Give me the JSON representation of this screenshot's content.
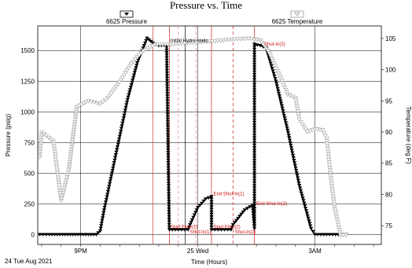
{
  "chart_data": {
    "type": "line",
    "title": "Pressure vs. Time",
    "xlabel": "Time (Hours)",
    "ylabel_left": "Pressure (psig)",
    "ylabel_right": "Temperature (deg F)",
    "date_label": "24 Tue Aug 2021",
    "x_tick_labels": [
      "9PM",
      "25 Wed",
      "3AM"
    ],
    "x_range_hours": [
      19.9,
      4.7
    ],
    "y_left_range": [
      -80,
      1700
    ],
    "y_right_range": [
      72,
      107
    ],
    "y_left_ticks": [
      0,
      250,
      500,
      750,
      1000,
      1250,
      1500
    ],
    "y_right_ticks": [
      75,
      80,
      85,
      90,
      95,
      100,
      105
    ],
    "grid": true,
    "legend_position": "top",
    "series": [
      {
        "name": "6625 Pressure",
        "axis": "left",
        "color": "#000000",
        "marker": "filled-down-triangle",
        "points": [
          [
            19.95,
            0
          ],
          [
            20.2,
            0
          ],
          [
            20.4,
            0
          ],
          [
            20.6,
            0
          ],
          [
            20.8,
            0
          ],
          [
            21.0,
            0
          ],
          [
            21.2,
            0
          ],
          [
            21.4,
            0
          ],
          [
            21.5,
            30
          ],
          [
            21.6,
            200
          ],
          [
            21.8,
            500
          ],
          [
            22.0,
            800
          ],
          [
            22.2,
            1100
          ],
          [
            22.45,
            1400
          ],
          [
            22.7,
            1600
          ],
          [
            22.85,
            1560
          ],
          [
            23.0,
            1540
          ],
          [
            23.2,
            1545
          ],
          [
            23.25,
            440
          ],
          [
            23.27,
            40
          ],
          [
            23.5,
            40
          ],
          [
            23.75,
            40
          ],
          [
            23.8,
            80
          ],
          [
            24.0,
            220
          ],
          [
            24.2,
            290
          ],
          [
            24.35,
            310
          ],
          [
            24.35,
            40
          ],
          [
            24.6,
            40
          ],
          [
            24.85,
            40
          ],
          [
            24.9,
            80
          ],
          [
            25.2,
            200
          ],
          [
            25.4,
            240
          ],
          [
            25.45,
            50
          ],
          [
            25.45,
            1550
          ],
          [
            25.6,
            1540
          ],
          [
            25.75,
            1520
          ],
          [
            26.0,
            1250
          ],
          [
            26.3,
            850
          ],
          [
            26.6,
            400
          ],
          [
            26.9,
            50
          ],
          [
            27.0,
            0
          ],
          [
            27.3,
            0
          ],
          [
            27.6,
            0
          ],
          [
            27.8,
            0
          ]
        ]
      },
      {
        "name": "6625 Temperature",
        "axis": "right",
        "color": "#aaaaaa",
        "marker": "open-down-triangle",
        "points": [
          [
            19.95,
            86
          ],
          [
            20.0,
            90
          ],
          [
            20.3,
            88.5
          ],
          [
            20.5,
            79
          ],
          [
            20.7,
            84
          ],
          [
            20.9,
            94
          ],
          [
            21.2,
            95
          ],
          [
            21.5,
            94.5
          ],
          [
            21.7,
            95.5
          ],
          [
            22.0,
            98
          ],
          [
            22.3,
            101
          ],
          [
            22.6,
            103
          ],
          [
            22.9,
            104
          ],
          [
            23.3,
            104
          ],
          [
            23.8,
            104.3
          ],
          [
            24.3,
            104.5
          ],
          [
            24.8,
            104.8
          ],
          [
            25.3,
            105
          ],
          [
            25.6,
            104.7
          ],
          [
            25.8,
            103
          ],
          [
            26.1,
            99
          ],
          [
            26.3,
            96
          ],
          [
            26.5,
            95.5
          ],
          [
            26.6,
            92
          ],
          [
            26.8,
            90
          ],
          [
            27.0,
            90.5
          ],
          [
            27.2,
            90.3
          ],
          [
            27.3,
            89
          ],
          [
            27.4,
            83
          ],
          [
            27.5,
            78
          ],
          [
            27.65,
            73.5
          ],
          [
            27.8,
            73.5
          ]
        ]
      }
    ],
    "event_lines": [
      {
        "x": 22.85,
        "color": "#c04040",
        "style": "solid"
      },
      {
        "x": 23.27,
        "color": "#d02020",
        "style": "solid"
      },
      {
        "x": 23.5,
        "color": "#e08080",
        "style": "dashed"
      },
      {
        "x": 23.68,
        "color": "#000000",
        "style": "solid"
      },
      {
        "x": 23.95,
        "color": "#e08080",
        "style": "dashed"
      },
      {
        "x": 24.35,
        "color": "#d02020",
        "style": "solid"
      },
      {
        "x": 24.9,
        "color": "#d02020",
        "style": "dashed"
      },
      {
        "x": 25.45,
        "color": "#d02020",
        "style": "solid"
      }
    ],
    "annotations": [
      {
        "text": "Initial Hydro-static",
        "x": 23.3,
        "y": 1570,
        "color": "#000000"
      },
      {
        "text": "Shut-In(3)",
        "x": 25.7,
        "y": 1540,
        "color": "#d01010"
      },
      {
        "text": "End Shut-In(1)",
        "x": 24.4,
        "y": 320,
        "color": "#d01010"
      },
      {
        "text": "End Shut-In(2)",
        "x": 25.5,
        "y": 240,
        "color": "#d01010"
      },
      {
        "text": "Start Flow(1)",
        "x": 23.3,
        "y": 50,
        "color": "#d01010"
      },
      {
        "text": "Shut-In(1)",
        "x": 23.8,
        "y": 10,
        "color": "#d01010"
      },
      {
        "text": "Start Flow(2)",
        "x": 24.4,
        "y": 50,
        "color": "#d01010"
      },
      {
        "text": "Shut-In(2)",
        "x": 24.95,
        "y": 10,
        "color": "#d01010"
      }
    ]
  }
}
